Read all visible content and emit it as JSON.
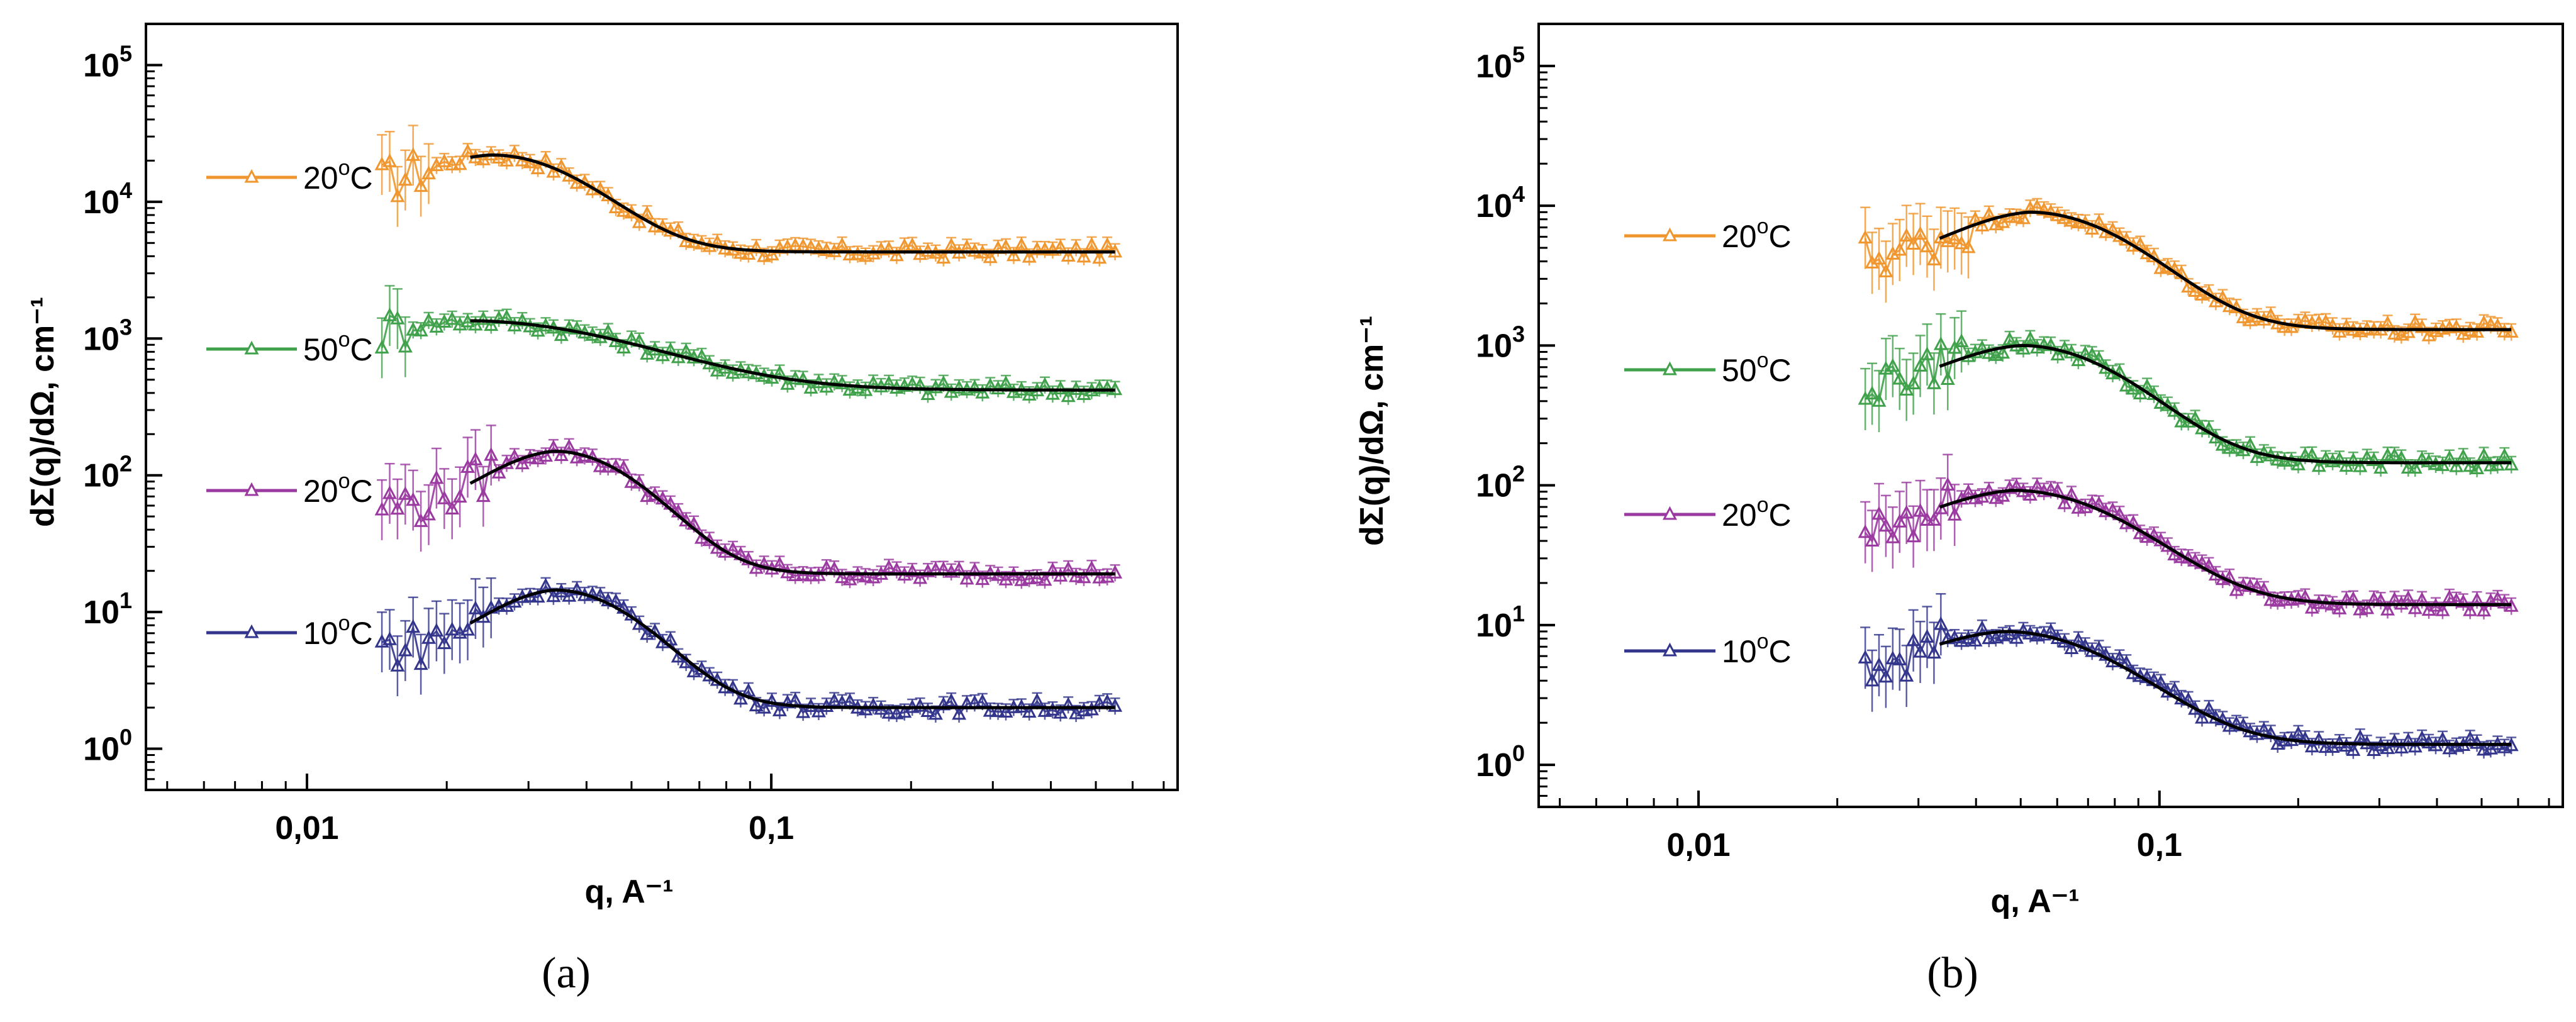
{
  "chart_data": [
    {
      "panel_label": "(a)",
      "type": "scatter",
      "x_scale": "log",
      "y_scale": "log",
      "xlabel": "q, A⁻¹",
      "ylabel": "dΣ(q)/dΩ, cm⁻¹",
      "xlim": [
        0.0045,
        0.75
      ],
      "ylim": [
        0.5,
        200000
      ],
      "x_ticks": [
        {
          "value": 0.01,
          "label": "0,01"
        },
        {
          "value": 0.1,
          "label": "0,1"
        }
      ],
      "y_ticks": [
        {
          "value": 1,
          "base": "10",
          "exp": "0"
        },
        {
          "value": 10,
          "base": "10",
          "exp": "1"
        },
        {
          "value": 100,
          "base": "10",
          "exp": "2"
        },
        {
          "value": 1000,
          "base": "10",
          "exp": "3"
        },
        {
          "value": 10000,
          "base": "10",
          "exp": "4"
        },
        {
          "value": 100000,
          "base": "10",
          "exp": "5"
        }
      ],
      "series": [
        {
          "name": "20°C",
          "legend_value": "20",
          "legend_unit": "C",
          "color": "#f0962e",
          "q_min": 0.0145,
          "q_max": 0.55,
          "peak_q": 0.025,
          "peak_I": 22000,
          "plateau": 4300,
          "low_I": 18000,
          "width": 0.5
        },
        {
          "name": "50°C",
          "legend_value": "50",
          "legend_unit": "C",
          "color": "#3fa14a",
          "q_min": 0.0145,
          "q_max": 0.55,
          "peak_q": 0.022,
          "peak_I": 1350,
          "plateau": 420,
          "low_I": 900,
          "width": 0.9
        },
        {
          "name": "20°C",
          "legend_value": "20",
          "legend_unit": "C",
          "color": "#9a3aa0",
          "q_min": 0.0145,
          "q_max": 0.55,
          "peak_q": 0.034,
          "peak_I": 150,
          "plateau": 19,
          "low_I": 85,
          "width": 0.45
        },
        {
          "name": "10°C",
          "legend_value": "10",
          "legend_unit": "C",
          "color": "#33358c",
          "q_min": 0.0145,
          "q_max": 0.55,
          "peak_q": 0.034,
          "peak_I": 14.5,
          "plateau": 2.0,
          "low_I": 7.5,
          "width": 0.45
        }
      ]
    },
    {
      "panel_label": "(b)",
      "type": "scatter",
      "x_scale": "log",
      "y_scale": "log",
      "xlabel": "q, A⁻¹",
      "ylabel": "dΣ(q)/dΩ, cm⁻¹",
      "xlim": [
        0.0045,
        0.75
      ],
      "ylim": [
        0.5,
        200000
      ],
      "x_ticks": [
        {
          "value": 0.01,
          "label": "0,01"
        },
        {
          "value": 0.1,
          "label": "0,1"
        }
      ],
      "y_ticks": [
        {
          "value": 1,
          "base": "10",
          "exp": "0"
        },
        {
          "value": 10,
          "base": "10",
          "exp": "1"
        },
        {
          "value": 100,
          "base": "10",
          "exp": "2"
        },
        {
          "value": 1000,
          "base": "10",
          "exp": "3"
        },
        {
          "value": 10000,
          "base": "10",
          "exp": "4"
        },
        {
          "value": 100000,
          "base": "10",
          "exp": "5"
        }
      ],
      "series": [
        {
          "name": "20°C",
          "legend_value": "20",
          "legend_unit": "C",
          "color": "#f0962e",
          "q_min": 0.023,
          "q_max": 0.58,
          "peak_q": 0.052,
          "peak_I": 9000,
          "plateau": 1300,
          "low_I": 5500,
          "width": 0.55
        },
        {
          "name": "50°C",
          "legend_value": "50",
          "legend_unit": "C",
          "color": "#3fa14a",
          "q_min": 0.023,
          "q_max": 0.58,
          "peak_q": 0.05,
          "peak_I": 1000,
          "plateau": 145,
          "low_I": 700,
          "width": 0.55
        },
        {
          "name": "20°C",
          "legend_value": "20",
          "legend_unit": "C",
          "color": "#9a3aa0",
          "q_min": 0.023,
          "q_max": 0.58,
          "peak_q": 0.048,
          "peak_I": 92,
          "plateau": 14,
          "low_I": 60,
          "width": 0.6
        },
        {
          "name": "10°C",
          "legend_value": "10",
          "legend_unit": "C",
          "color": "#33358c",
          "q_min": 0.023,
          "q_max": 0.58,
          "peak_q": 0.046,
          "peak_I": 9,
          "plateau": 1.4,
          "low_I": 6.5,
          "width": 0.6
        }
      ]
    }
  ]
}
